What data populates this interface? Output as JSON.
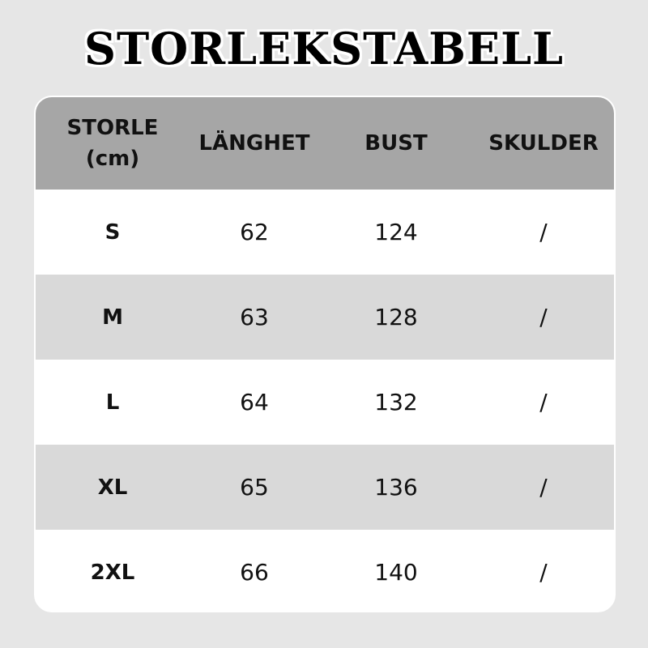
{
  "title": "STORLEKSTABELL",
  "headers": [
    "STORLE",
    "(cm)",
    "LÄNGHET",
    "BUST",
    "SKULDER"
  ],
  "rows": [
    [
      "S",
      "62",
      "124",
      "/"
    ],
    [
      "M",
      "63",
      "128",
      "/"
    ],
    [
      "L",
      "64",
      "132",
      "/"
    ],
    [
      "XL",
      "65",
      "136",
      "/"
    ],
    [
      "2XL",
      "66",
      "140",
      "/"
    ]
  ]
}
